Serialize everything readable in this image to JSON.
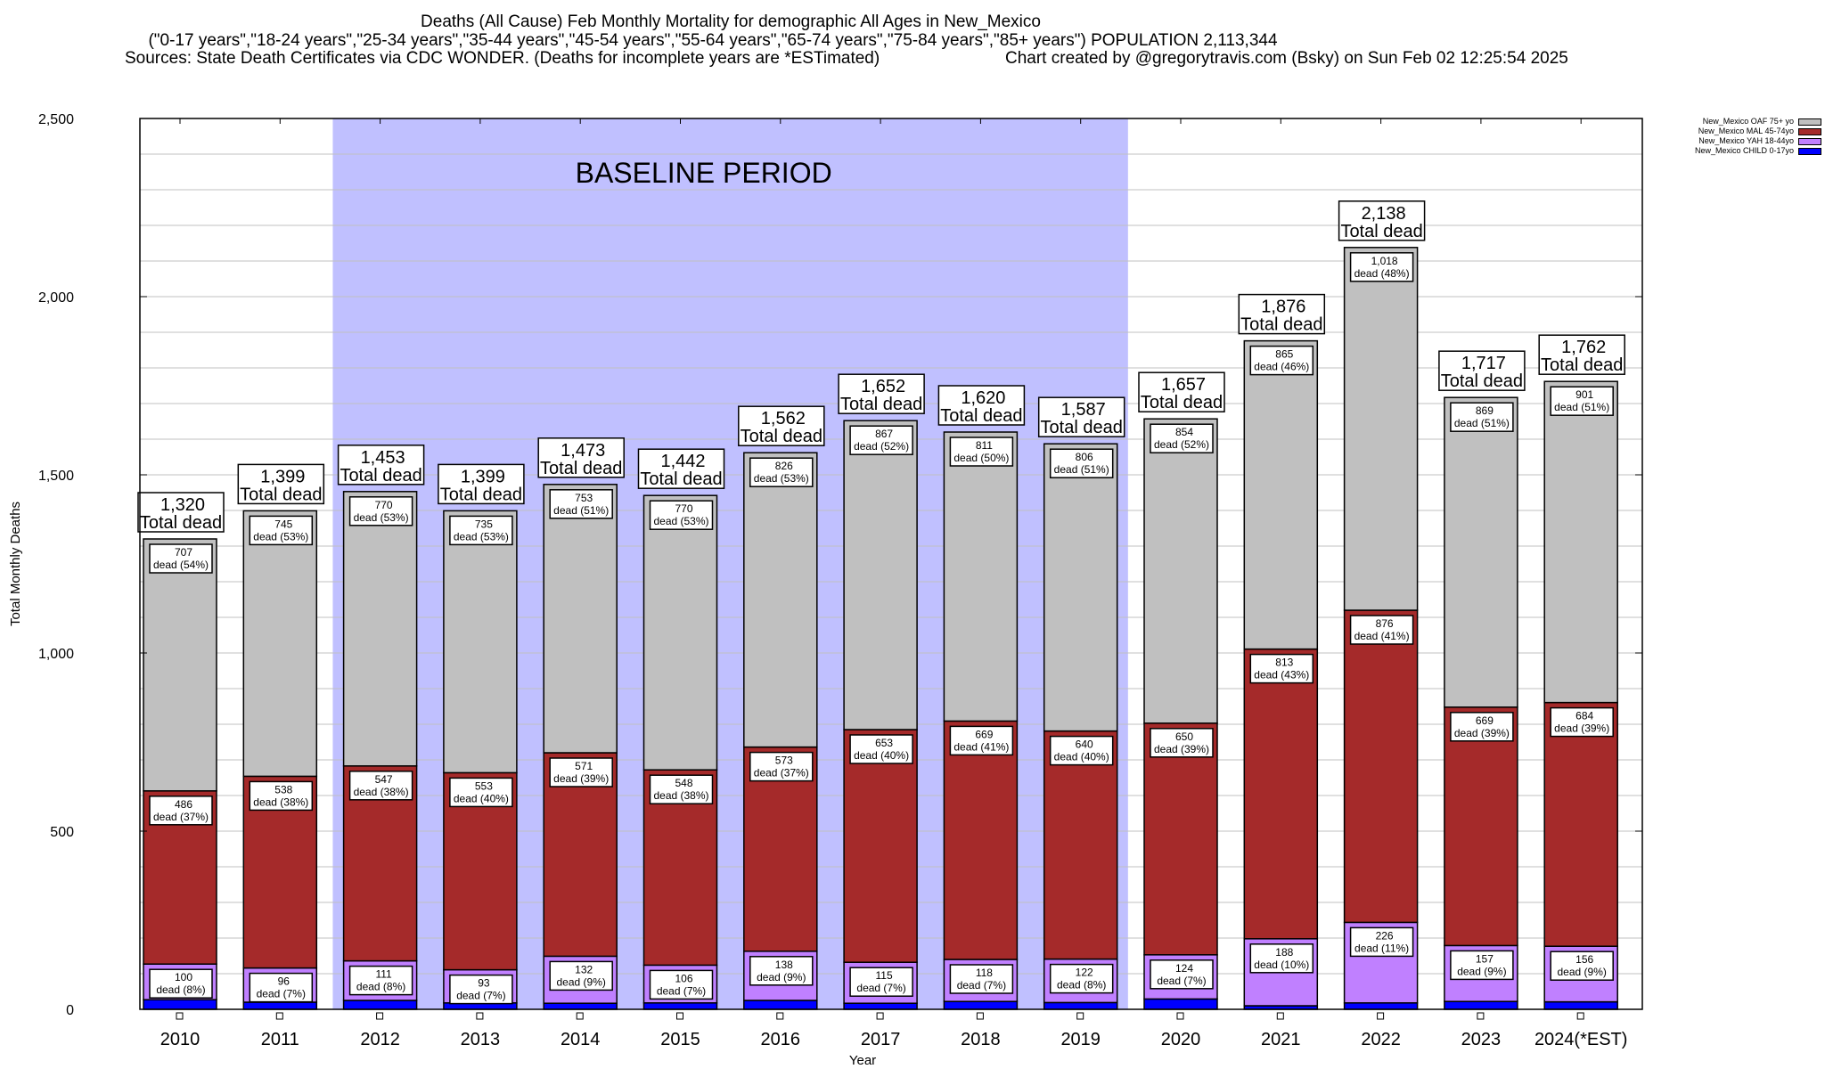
{
  "header": {
    "title": "Deaths (All Cause) Feb Monthly Mortality for demographic All Ages in New_Mexico",
    "subtitle": "(\"0-17 years\",\"18-24 years\",\"25-34 years\",\"35-44 years\",\"45-54 years\",\"55-64 years\",\"65-74 years\",\"75-84 years\",\"85+ years\") POPULATION 2,113,344",
    "sources": "Sources: State Death Certificates via CDC WONDER. (Deaths for incomplete years are *ESTimated)",
    "credit": "Chart created by @gregorytravis.com (Bsky) on Sun Feb 02 12:25:54 2025"
  },
  "chart_data": {
    "type": "bar",
    "stacked": true,
    "title": "Deaths (All Cause) Feb Monthly Mortality for demographic All Ages in New_Mexico",
    "xlabel": "Year",
    "ylabel": "Total Monthly Deaths",
    "ylim": [
      0,
      2500
    ],
    "yticks": [
      0,
      500,
      1000,
      1500,
      2000,
      2500
    ],
    "ytick_labels": [
      "0",
      "500",
      "1,000",
      "1,500",
      "2,000",
      "2,500"
    ],
    "minor_grid_step": 100,
    "grid": true,
    "legend_position": "top-right",
    "categories": [
      "2010",
      "2011",
      "2012",
      "2013",
      "2014",
      "2015",
      "2016",
      "2017",
      "2018",
      "2019",
      "2020",
      "2021",
      "2022",
      "2023",
      "2024(*EST)"
    ],
    "series": [
      {
        "name": "New_Mexico CHILD 0-17yo",
        "color": "#0000ff",
        "values": [
          27,
          20,
          25,
          18,
          17,
          18,
          25,
          17,
          22,
          19,
          29,
          10,
          18,
          22,
          21
        ]
      },
      {
        "name": "New_Mexico YAH 18-44yo",
        "color": "#c080ff",
        "values": [
          100,
          96,
          111,
          93,
          132,
          106,
          138,
          115,
          118,
          122,
          124,
          188,
          226,
          157,
          156
        ],
        "pct_labels": [
          "8%",
          "7%",
          "8%",
          "7%",
          "9%",
          "7%",
          "9%",
          "7%",
          "7%",
          "8%",
          "7%",
          "10%",
          "11%",
          "9%",
          "9%"
        ]
      },
      {
        "name": "New_Mexico MAL 45-74yo",
        "color": "#a52a2a",
        "values": [
          486,
          538,
          547,
          553,
          571,
          548,
          573,
          653,
          669,
          640,
          650,
          813,
          876,
          669,
          684
        ],
        "pct_labels": [
          "37%",
          "38%",
          "38%",
          "40%",
          "39%",
          "38%",
          "37%",
          "40%",
          "41%",
          "40%",
          "39%",
          "43%",
          "41%",
          "39%",
          "39%"
        ]
      },
      {
        "name": "New_Mexico OAF 75+ yo",
        "color": "#c0c0c0",
        "values": [
          707,
          745,
          770,
          735,
          753,
          770,
          826,
          867,
          811,
          806,
          854,
          865,
          1018,
          869,
          901
        ],
        "pct_labels": [
          "54%",
          "53%",
          "53%",
          "53%",
          "51%",
          "53%",
          "53%",
          "52%",
          "50%",
          "51%",
          "52%",
          "46%",
          "48%",
          "51%",
          "51%"
        ]
      }
    ],
    "totals": [
      1320,
      1399,
      1453,
      1399,
      1473,
      1442,
      1562,
      1652,
      1620,
      1587,
      1657,
      1876,
      2138,
      1717,
      1762
    ],
    "total_labels": [
      "1,320",
      "1,399",
      "1,453",
      "1,399",
      "1,473",
      "1,442",
      "1,562",
      "1,652",
      "1,620",
      "1,587",
      "1,657",
      "1,876",
      "2,138",
      "1,717",
      "1,762"
    ],
    "segment_label_suffix": "dead",
    "total_label_suffix": "Total dead",
    "annotation": {
      "text": "BASELINE PERIOD",
      "span_start": "2012",
      "span_end": "2019",
      "color": "#c0c0ff"
    },
    "legend_order": [
      "New_Mexico OAF 75+ yo",
      "New_Mexico MAL 45-74yo",
      "New_Mexico YAH 18-44yo",
      "New_Mexico CHILD 0-17yo"
    ]
  }
}
